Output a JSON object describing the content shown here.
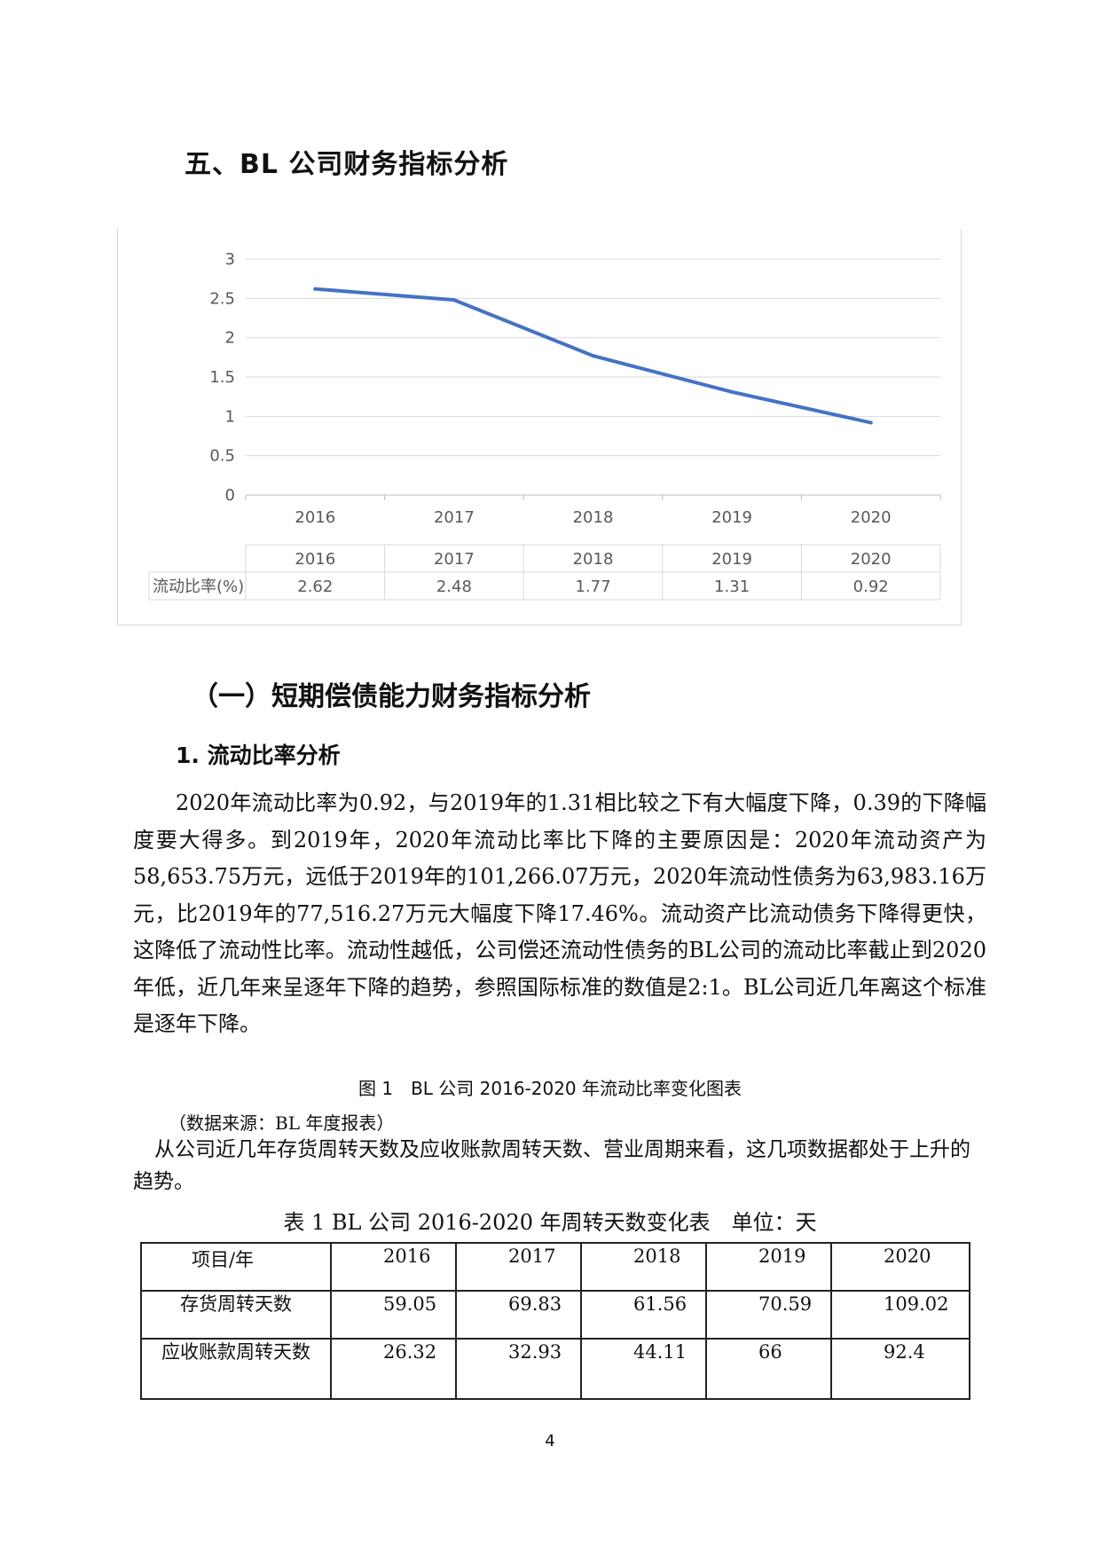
{
  "section_title": "五、BL 公司财务指标分析",
  "chart_data": {
    "type": "line",
    "categories": [
      "2016",
      "2017",
      "2018",
      "2019",
      "2020"
    ],
    "series": [
      {
        "name": "流动比率(%)",
        "values": [
          2.62,
          2.48,
          1.77,
          1.31,
          0.92
        ]
      }
    ],
    "ylim": [
      0,
      3
    ],
    "yticks": [
      "0",
      "0.5",
      "1",
      "1.5",
      "2",
      "2.5",
      "3"
    ],
    "data_table": {
      "header": [
        "2016",
        "2017",
        "2018",
        "2019",
        "2020"
      ],
      "row_label": "流动比率(%)",
      "row_values": [
        "2.62",
        "2.48",
        "1.77",
        "1.31",
        "0.92"
      ]
    },
    "grid": true,
    "line_color": "#4472c4"
  },
  "subsection_title": "（一）短期偿债能力财务指标分析",
  "subsubsection_title": "1. 流动比率分析",
  "body_paragraph": "2020年流动比率为0.92，与2019年的1.31相比较之下有大幅度下降，0.39的下降幅度要大得多。到2019年，2020年流动比率比下降的主要原因是：2020年流动资产为58,653.75万元，远低于2019年的101,266.07万元，2020年流动性债务为63,983.16万元，比2019年的77,516.27万元大幅度下降17.46%。流动资产比流动债务下降得更快，这降低了流动性比率。流动性越低，公司偿还流动性债务的BL公司的流动比率截止到2020年低，近几年来呈逐年下降的趋势，参照国际标准的数值是2:1。BL公司近几年离这个标准是逐年下降。",
  "figure_caption": "图 1　BL 公司 2016-2020 年流动比率变化图表",
  "data_source": "（数据来源：BL 年度报表）",
  "analysis_paragraph": "从公司近几年存货周转天数及应收账款周转天数、营业周期来看，这几项数据都处于上升的趋势。",
  "table_title": "表 1 BL 公司 2016-2020 年周转天数变化表　单位：天",
  "table": {
    "header": [
      "项目/年",
      "2016",
      "2017",
      "2018",
      "2019",
      "2020"
    ],
    "rows": [
      {
        "label": "存货周转天数",
        "values": [
          "59.05",
          "69.83",
          "61.56",
          "70.59",
          "109.02"
        ]
      },
      {
        "label": "应收账款周转天数",
        "values": [
          "26.32",
          "32.93",
          "44.11",
          "66",
          "92.4"
        ]
      }
    ]
  },
  "page_number": "4"
}
